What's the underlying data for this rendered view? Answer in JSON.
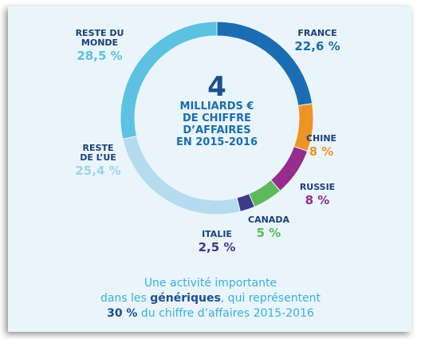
{
  "chart_data": {
    "type": "donut",
    "categories": [
      "FRANCE",
      "CHINE",
      "RUSSIE",
      "CANADA",
      "ITALIE",
      "RESTE DE L’UE",
      "RESTE DU MONDE"
    ],
    "values": [
      22.6,
      8,
      8,
      5,
      2.5,
      25.4,
      28.5
    ],
    "value_labels": [
      "22,6 %",
      "8 %",
      "8 %",
      "5 %",
      "2,5 %",
      "25,4 %",
      "28,5 %"
    ],
    "colors": [
      "#1b6db3",
      "#ef9324",
      "#962c8c",
      "#5db95a",
      "#3c3a8a",
      "#b4dcee",
      "#5dc1e2"
    ],
    "center": {
      "number": "4",
      "lines": [
        "MILLIARDS €",
        "DE CHIFFRE",
        "D’AFFAIRES",
        "EN 2015-2016"
      ]
    },
    "footnote": [
      [
        {
          "text": "Une activité importante",
          "bold": false
        }
      ],
      [
        {
          "text": "dans les ",
          "bold": false
        },
        {
          "text": "génériques",
          "bold": true
        },
        {
          "text": ", qui représentent",
          "bold": false
        }
      ],
      [
        {
          "text": "30 %",
          "bold": true
        },
        {
          "text": " du chiffre d’affaires 2015-2016",
          "bold": false
        }
      ]
    ]
  }
}
